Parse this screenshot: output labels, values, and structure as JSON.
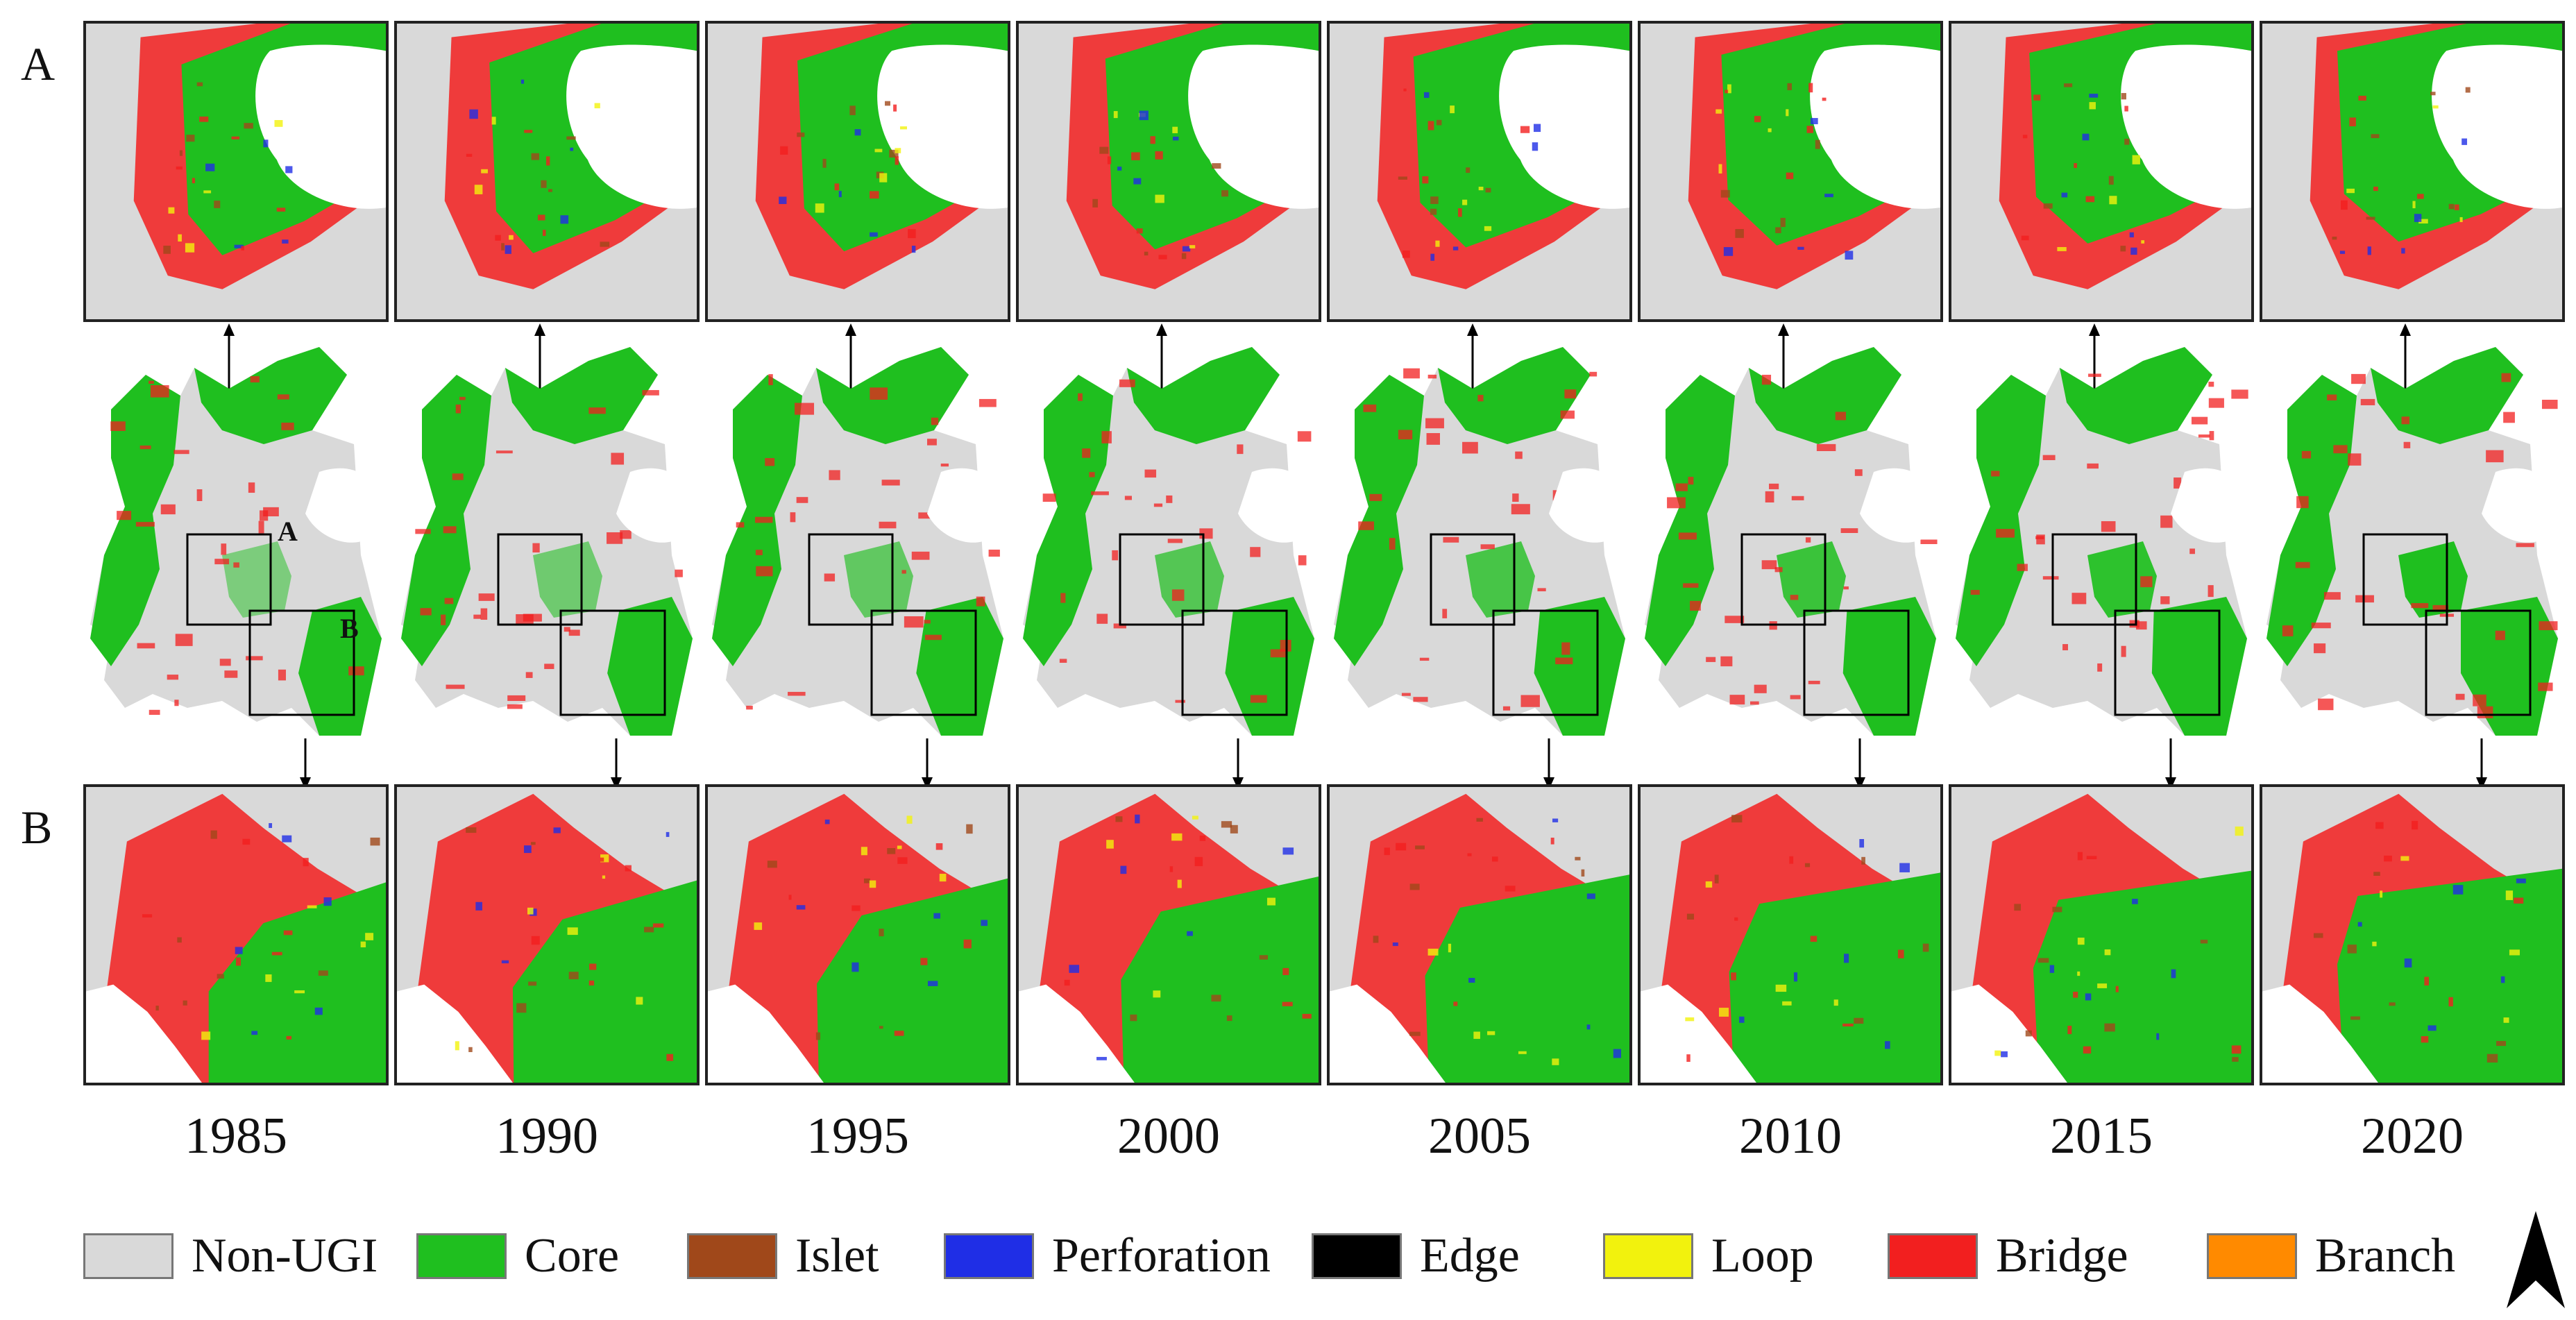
{
  "figure": {
    "row_labels": {
      "top": "A",
      "bottom": "B"
    },
    "box_labels": {
      "a": "A",
      "b": "B"
    },
    "years": [
      "1985",
      "1990",
      "1995",
      "2000",
      "2005",
      "2010",
      "2015",
      "2020"
    ]
  },
  "legend": [
    {
      "label": "Non-UGI",
      "color": "#d9d9d9"
    },
    {
      "label": "Core",
      "color": "#1fbf1f"
    },
    {
      "label": "Islet",
      "color": "#a0481a"
    },
    {
      "label": "Perforation",
      "color": "#1f2ee6"
    },
    {
      "label": "Edge",
      "color": "#000000"
    },
    {
      "label": "Loop",
      "color": "#f2f20d"
    },
    {
      "label": "Bridge",
      "color": "#f21f1f"
    },
    {
      "label": "Branch",
      "color": "#ff8a00"
    }
  ],
  "icons": {
    "north_arrow": "north-arrow-icon"
  }
}
